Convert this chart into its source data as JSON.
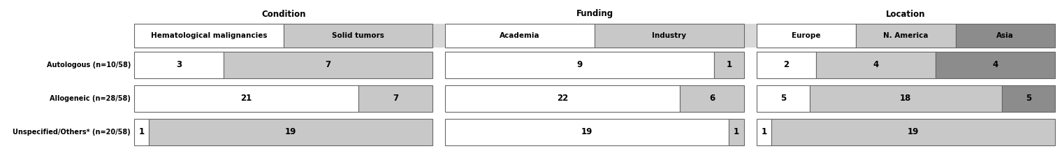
{
  "rows": [
    "Autologous (n=10/58)",
    "Allogeneic (n=28/58)",
    "Unspecified/Others* (n=20/58)"
  ],
  "sections": [
    {
      "title": "Condition",
      "subsections": [
        "Hematological malignancies",
        "Solid tumors"
      ],
      "data": [
        [
          3,
          7
        ],
        [
          21,
          7
        ],
        [
          1,
          19
        ]
      ],
      "row_totals": [
        10,
        28,
        20
      ],
      "header_colors": [
        "#ffffff",
        "#c8c8c8"
      ],
      "bar_colors": [
        "#ffffff",
        "#c8c8c8"
      ]
    },
    {
      "title": "Funding",
      "subsections": [
        "Academia",
        "Industry"
      ],
      "data": [
        [
          9,
          1
        ],
        [
          22,
          6
        ],
        [
          19,
          1
        ]
      ],
      "row_totals": [
        10,
        28,
        20
      ],
      "header_colors": [
        "#ffffff",
        "#c8c8c8"
      ],
      "bar_colors": [
        "#ffffff",
        "#c8c8c8"
      ]
    },
    {
      "title": "Location",
      "subsections": [
        "Europe",
        "N. America",
        "Asia"
      ],
      "data": [
        [
          2,
          4,
          4
        ],
        [
          5,
          18,
          5
        ],
        [
          1,
          19,
          0
        ]
      ],
      "row_totals": [
        10,
        28,
        20
      ],
      "header_colors": [
        "#ffffff",
        "#c8c8c8",
        "#8c8c8c"
      ],
      "bar_colors": [
        "#ffffff",
        "#c8c8c8",
        "#8c8c8c"
      ]
    }
  ],
  "edge_color": "#666666",
  "header_bg_color": "#d8d8d8",
  "row_label_fontsize": 7.0,
  "header_fontsize": 7.5,
  "value_fontsize": 8.5,
  "section_title_fontsize": 8.5,
  "lw": 0.8
}
